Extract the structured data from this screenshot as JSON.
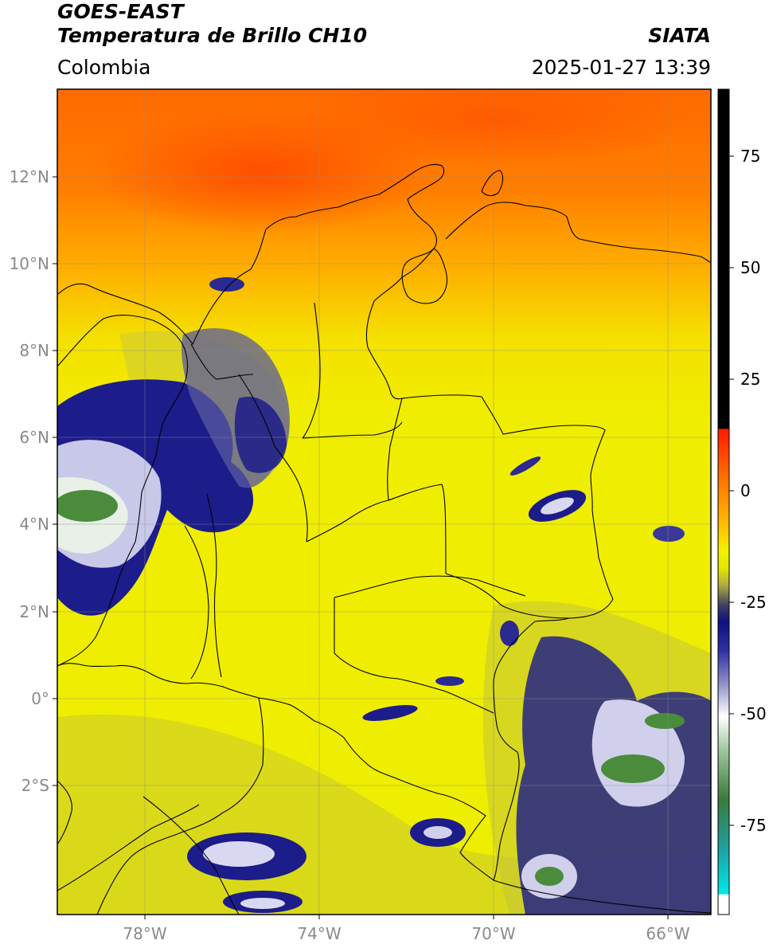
{
  "title": {
    "line1": "GOES-EAST",
    "line2": "Temperatura de Brillo CH10",
    "brand": "SIATA",
    "region": "Colombia",
    "datetime": "2025-01-27 13:39"
  },
  "axes": {
    "lat_labels": [
      "12°N",
      "10°N",
      "8°N",
      "6°N",
      "4°N",
      "2°N",
      "0°",
      "2°S"
    ],
    "lon_labels": [
      "78°W",
      "74°W",
      "70°W",
      "66°W"
    ]
  },
  "colorbar": {
    "ticks": [
      "75",
      "50",
      "25",
      "0",
      "-25",
      "-50",
      "-75"
    ],
    "tick_values": [
      75,
      50,
      25,
      0,
      -25,
      -50,
      -75
    ],
    "range": [
      -95,
      90
    ]
  },
  "colors": {
    "warm": "#ff5a00",
    "orange": "#ff9a00",
    "yellow": "#f0f000",
    "olive": "#b4b43c",
    "navy": "#141478",
    "white": "#ffffff",
    "green": "#4a8c3c",
    "cyan": "#00e0e0",
    "black": "#000000",
    "red": "#ff1a00"
  }
}
